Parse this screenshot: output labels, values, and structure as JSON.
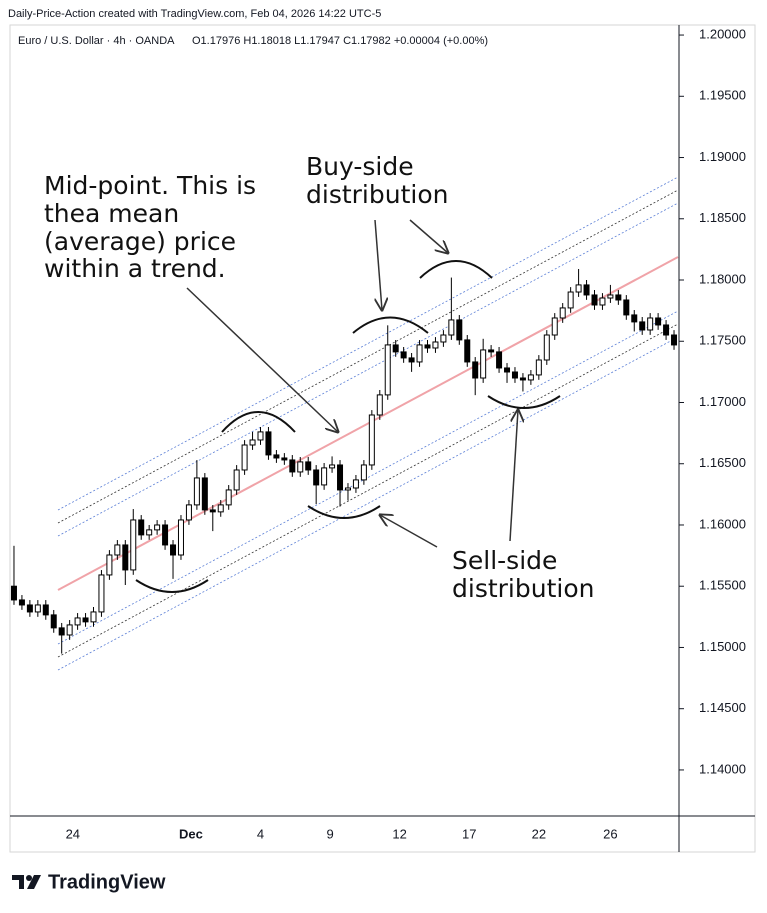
{
  "header": "Daily-Price-Action created with TradingView.com, Feb 04, 2026 14:22 UTC-5",
  "footer": "TradingView",
  "chart_data": {
    "type": "candlestick",
    "title": "Euro / U.S. Dollar · 4h · OANDA",
    "ohlc_label": "O1.17976 H1.18018 L1.17947 C1.17982 +0.00004 (+0.00%)",
    "annotations": {
      "mid_point": [
        "Mid-point. This is",
        "thea mean",
        "(average) price",
        "within a trend."
      ],
      "buy_side": [
        "Buy-side",
        "distribution"
      ],
      "sell_side": [
        "Sell-side",
        "distribution"
      ]
    },
    "up_color": "#ffffff",
    "down_color": "#000000",
    "open": [
      1.155,
      1.15388,
      1.15347,
      1.1529,
      1.15347,
      1.15266,
      1.1516,
      1.15102,
      1.15184,
      1.15241,
      1.15209,
      1.1529,
      1.15592,
      1.15755,
      1.15837,
      1.15633,
      1.16041,
      1.15919,
      1.1596,
      1.16,
      1.15837,
      1.15755,
      1.16041,
      1.16164,
      1.16384,
      1.16123,
      1.16107,
      1.16164,
      1.16286,
      1.16449,
      1.16653,
      1.16694,
      1.1676,
      1.16572,
      1.16547,
      1.16531,
      1.16433,
      1.16515,
      1.16449,
      1.16327,
      1.16466,
      1.1649,
      1.16286,
      1.16302,
      1.16368,
      1.1649,
      1.16898,
      1.17062,
      1.1747,
      1.17413,
      1.17364,
      1.17331,
      1.1747,
      1.17445,
      1.17494,
      1.17551,
      1.17674,
      1.17511,
      1.17331,
      1.172,
      1.17429,
      1.17413,
      1.17282,
      1.17249,
      1.172,
      1.17184,
      1.17225,
      1.17347,
      1.17551,
      1.1769,
      1.17772,
      1.17902,
      1.1796,
      1.17878,
      1.17796,
      1.17853,
      1.17878,
      1.17837,
      1.17715,
      1.17658,
      1.17592,
      1.1769,
      1.17633,
      1.17551
    ],
    "high": [
      1.1583,
      1.15428,
      1.15387,
      1.15387,
      1.15387,
      1.15306,
      1.152,
      1.15224,
      1.15281,
      1.15281,
      1.1533,
      1.15632,
      1.15795,
      1.15877,
      1.15877,
      1.1613,
      1.16081,
      1.16,
      1.1604,
      1.1604,
      1.15877,
      1.16081,
      1.16204,
      1.1653,
      1.16424,
      1.16163,
      1.16204,
      1.16326,
      1.16489,
      1.16693,
      1.1676,
      1.168,
      1.168,
      1.16612,
      1.16587,
      1.16571,
      1.16555,
      1.16555,
      1.16489,
      1.16506,
      1.1656,
      1.1653,
      1.16342,
      1.16408,
      1.1653,
      1.16938,
      1.17102,
      1.1763,
      1.1751,
      1.17453,
      1.17404,
      1.1751,
      1.1751,
      1.17534,
      1.17591,
      1.1802,
      1.17714,
      1.17551,
      1.17371,
      1.1752,
      1.17469,
      1.17453,
      1.17322,
      1.17289,
      1.1724,
      1.17265,
      1.17387,
      1.17591,
      1.1773,
      1.17812,
      1.17942,
      1.1809,
      1.18,
      1.17918,
      1.17893,
      1.1796,
      1.17918,
      1.17877,
      1.17755,
      1.17698,
      1.1773,
      1.1773,
      1.17673,
      1.17591
    ],
    "low": [
      1.15348,
      1.15307,
      1.1525,
      1.1525,
      1.15226,
      1.1512,
      1.1495,
      1.15062,
      1.15144,
      1.15169,
      1.15169,
      1.1525,
      1.15552,
      1.15715,
      1.1551,
      1.15593,
      1.15879,
      1.15879,
      1.1592,
      1.15797,
      1.1556,
      1.15715,
      1.16001,
      1.16124,
      1.16083,
      1.1595,
      1.16067,
      1.16124,
      1.16246,
      1.16409,
      1.16613,
      1.16654,
      1.16532,
      1.16507,
      1.16491,
      1.16393,
      1.16393,
      1.16409,
      1.1617,
      1.16287,
      1.16426,
      1.1615,
      1.162,
      1.16262,
      1.16328,
      1.1645,
      1.16858,
      1.17022,
      1.17373,
      1.17324,
      1.1725,
      1.17291,
      1.17405,
      1.17405,
      1.17454,
      1.17511,
      1.17471,
      1.17291,
      1.1706,
      1.1716,
      1.17373,
      1.17242,
      1.1716,
      1.1716,
      1.1709,
      1.17144,
      1.17185,
      1.17307,
      1.17511,
      1.1765,
      1.17732,
      1.17862,
      1.17838,
      1.17756,
      1.17756,
      1.17813,
      1.17797,
      1.17675,
      1.1758,
      1.17552,
      1.17552,
      1.17593,
      1.17511,
      1.1743
    ],
    "close": [
      1.15388,
      1.15347,
      1.1529,
      1.15347,
      1.15266,
      1.1516,
      1.15102,
      1.15184,
      1.15241,
      1.15209,
      1.1529,
      1.15592,
      1.15755,
      1.15837,
      1.15633,
      1.16041,
      1.15919,
      1.1596,
      1.16,
      1.15837,
      1.15755,
      1.16041,
      1.16164,
      1.16384,
      1.16123,
      1.16107,
      1.16164,
      1.16286,
      1.16449,
      1.16653,
      1.16694,
      1.1676,
      1.16572,
      1.16547,
      1.16531,
      1.16433,
      1.16515,
      1.16449,
      1.16327,
      1.16466,
      1.1649,
      1.16286,
      1.16302,
      1.16368,
      1.1649,
      1.16898,
      1.17062,
      1.1747,
      1.17413,
      1.17364,
      1.17331,
      1.1747,
      1.17445,
      1.17494,
      1.17551,
      1.17674,
      1.17511,
      1.17331,
      1.172,
      1.17429,
      1.17413,
      1.17282,
      1.17249,
      1.172,
      1.17184,
      1.17225,
      1.17347,
      1.17551,
      1.1769,
      1.17772,
      1.17902,
      1.1796,
      1.17878,
      1.17796,
      1.17853,
      1.17878,
      1.17837,
      1.17715,
      1.17658,
      1.17592,
      1.1769,
      1.17633,
      1.17551,
      1.1747
    ],
    "xlim": [
      -0.5,
      83.5
    ],
    "xticks": [
      {
        "value": 7.4,
        "label": "24"
      },
      {
        "value": 22.25,
        "label": "Dec"
      },
      {
        "value": 31,
        "label": "4"
      },
      {
        "value": 39.75,
        "label": "9"
      },
      {
        "value": 48.5,
        "label": "12"
      },
      {
        "value": 57.25,
        "label": "17"
      },
      {
        "value": 66,
        "label": "22"
      },
      {
        "value": 75,
        "label": "26"
      }
    ],
    "ylim": [
      1.13624,
      1.20082
    ],
    "yticks": [
      {
        "value": 1.14,
        "label": "1.14000"
      },
      {
        "value": 1.145,
        "label": "1.14500"
      },
      {
        "value": 1.15,
        "label": "1.15000"
      },
      {
        "value": 1.155,
        "label": "1.15500"
      },
      {
        "value": 1.16,
        "label": "1.16000"
      },
      {
        "value": 1.165,
        "label": "1.16500"
      },
      {
        "value": 1.17,
        "label": "1.17000"
      },
      {
        "value": 1.175,
        "label": "1.17500"
      },
      {
        "value": 1.18,
        "label": "1.18000"
      },
      {
        "value": 1.185,
        "label": "1.18500"
      },
      {
        "value": 1.19,
        "label": "1.19000"
      },
      {
        "value": 1.195,
        "label": "1.19500"
      },
      {
        "value": 1.2,
        "label": "1.20000"
      }
    ],
    "grid": false
  }
}
